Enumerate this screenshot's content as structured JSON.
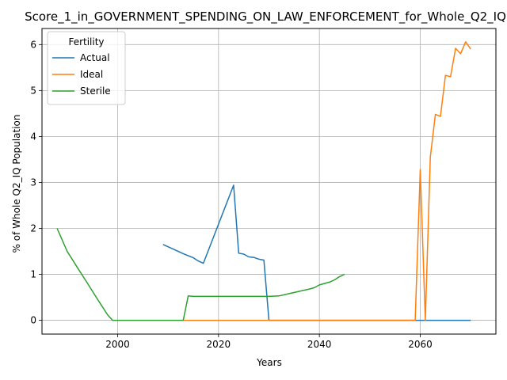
{
  "chart_data": {
    "type": "line",
    "title": "Score_1_in_GOVERNMENT_SPENDING_ON_LAW_ENFORCEMENT_for_Whole_Q2_IQ",
    "xlabel": "Years",
    "ylabel": "% of Whole Q2_IQ Population",
    "xlim": [
      1985,
      2075
    ],
    "ylim": [
      -0.3,
      6.35
    ],
    "x_ticks": [
      2000,
      2020,
      2040,
      2060
    ],
    "y_ticks": [
      0,
      1,
      2,
      3,
      4,
      5,
      6
    ],
    "grid": true,
    "legend": {
      "title": "Fertility",
      "position": "top-left"
    },
    "series": [
      {
        "name": "Actual",
        "color": "#1f77b4",
        "points": [
          [
            2009,
            1.65
          ],
          [
            2011,
            1.55
          ],
          [
            2013,
            1.45
          ],
          [
            2015,
            1.36
          ],
          [
            2016,
            1.29
          ],
          [
            2017,
            1.24
          ],
          [
            2023,
            2.94
          ],
          [
            2024,
            1.46
          ],
          [
            2025,
            1.44
          ],
          [
            2026,
            1.38
          ],
          [
            2027,
            1.37
          ],
          [
            2028,
            1.33
          ],
          [
            2029,
            1.31
          ],
          [
            2030,
            0.0
          ],
          [
            2040,
            0.0
          ],
          [
            2050,
            0.0
          ],
          [
            2060,
            0.0
          ],
          [
            2070,
            0.0
          ]
        ]
      },
      {
        "name": "Ideal",
        "color": "#ff7f0e",
        "points": [
          [
            2013,
            0.0
          ],
          [
            2030,
            0.0
          ],
          [
            2045,
            0.0
          ],
          [
            2059,
            0.0
          ],
          [
            2060,
            3.28
          ],
          [
            2061,
            0.0
          ],
          [
            2062,
            3.55
          ],
          [
            2063,
            4.48
          ],
          [
            2064,
            4.44
          ],
          [
            2065,
            5.33
          ],
          [
            2066,
            5.3
          ],
          [
            2067,
            5.92
          ],
          [
            2068,
            5.8
          ],
          [
            2069,
            6.06
          ],
          [
            2070,
            5.9
          ]
        ]
      },
      {
        "name": "Sterile",
        "color": "#2ca02c",
        "points": [
          [
            1988,
            2.0
          ],
          [
            1990,
            1.5
          ],
          [
            1992,
            1.15
          ],
          [
            1994,
            0.81
          ],
          [
            1996,
            0.46
          ],
          [
            1998,
            0.12
          ],
          [
            1999,
            0.0
          ],
          [
            2005,
            0.0
          ],
          [
            2010,
            0.0
          ],
          [
            2013,
            0.0
          ],
          [
            2014,
            0.53
          ],
          [
            2015,
            0.52
          ],
          [
            2020,
            0.52
          ],
          [
            2025,
            0.52
          ],
          [
            2030,
            0.52
          ],
          [
            2032,
            0.53
          ],
          [
            2034,
            0.58
          ],
          [
            2036,
            0.63
          ],
          [
            2038,
            0.68
          ],
          [
            2039,
            0.71
          ],
          [
            2040,
            0.77
          ],
          [
            2042,
            0.83
          ],
          [
            2043,
            0.88
          ],
          [
            2044,
            0.95
          ],
          [
            2045,
            1.0
          ]
        ]
      }
    ]
  }
}
